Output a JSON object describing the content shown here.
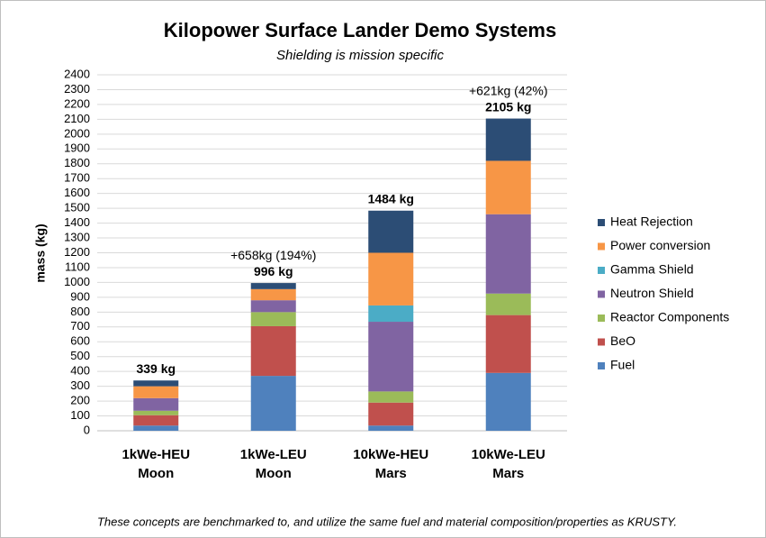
{
  "chart_data": {
    "type": "stacked_bar",
    "title": "Kilopower Surface Lander Demo Systems",
    "subtitle": "Shielding is mission specific",
    "y_label": "mass (kg)",
    "categories": [
      [
        "1kWe-HEU",
        "Moon"
      ],
      [
        "1kWe-LEU",
        "Moon"
      ],
      [
        "10kWe-HEU",
        "Mars"
      ],
      [
        "10kWe-LEU",
        "Mars"
      ]
    ],
    "series": [
      {
        "name": "Fuel",
        "color": "#4f81bd",
        "values": [
          35,
          370,
          35,
          390
        ]
      },
      {
        "name": "BeO",
        "color": "#c0504d",
        "values": [
          70,
          335,
          155,
          390
        ]
      },
      {
        "name": "Reactor Components",
        "color": "#9bbb59",
        "values": [
          30,
          95,
          75,
          145
        ]
      },
      {
        "name": "Neutron Shield",
        "color": "#8064a2",
        "values": [
          85,
          80,
          470,
          535
        ]
      },
      {
        "name": "Gamma Shield",
        "color": "#4bacc6",
        "values": [
          0,
          0,
          110,
          0
        ]
      },
      {
        "name": "Power conversion",
        "color": "#f79646",
        "values": [
          80,
          75,
          355,
          360
        ]
      },
      {
        "name": "Heat Rejection",
        "color": "#2c4d75",
        "values": [
          39,
          41,
          284,
          285
        ]
      }
    ],
    "total_labels": [
      "339 kg",
      "996 kg",
      "1484 kg",
      "2105 kg"
    ],
    "annotations": [
      "+658kg (194%)",
      "+621kg (42%)"
    ],
    "footnote": "These concepts are benchmarked to, and utilize the same fuel and material composition/properties as KRUSTY.",
    "ylim": [
      0,
      2400
    ],
    "yticks": [
      0,
      100,
      200,
      300,
      400,
      500,
      600,
      700,
      800,
      900,
      1000,
      1100,
      1200,
      1300,
      1400,
      1500,
      1600,
      1700,
      1800,
      1900,
      2000,
      2100,
      2200,
      2300,
      2400
    ],
    "grid": true,
    "legend": "right"
  }
}
